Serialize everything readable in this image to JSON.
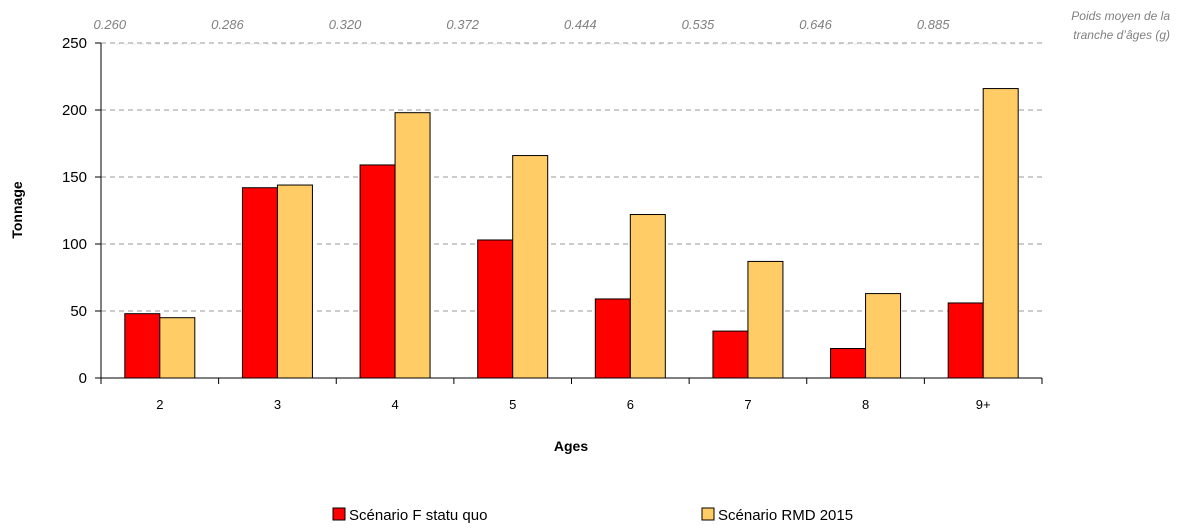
{
  "chart_data": {
    "type": "bar",
    "categories": [
      "2",
      "3",
      "4",
      "5",
      "6",
      "7",
      "8",
      "9+"
    ],
    "series": [
      {
        "name": "Scénario F statu quo",
        "color": "#ff0000",
        "values": [
          48,
          142,
          159,
          103,
          59,
          35,
          22,
          56
        ]
      },
      {
        "name": "Scénario RMD 2015",
        "color": "#ffcc66",
        "values": [
          45,
          144,
          198,
          166,
          122,
          87,
          63,
          216
        ]
      }
    ],
    "xlabel": "Ages",
    "ylabel": "Tonnage",
    "ylim": [
      0,
      250
    ],
    "yticks": [
      0,
      50,
      100,
      150,
      200,
      250
    ],
    "grid": "horizontal dashed",
    "legend_position": "bottom",
    "mean_weights": [
      "0.260",
      "0.286",
      "0.320",
      "0.372",
      "0.444",
      "0.535",
      "0.646",
      "0.885"
    ],
    "mean_weight_note": [
      "Poids moyen de la",
      "tranche d’âges (g)"
    ]
  }
}
